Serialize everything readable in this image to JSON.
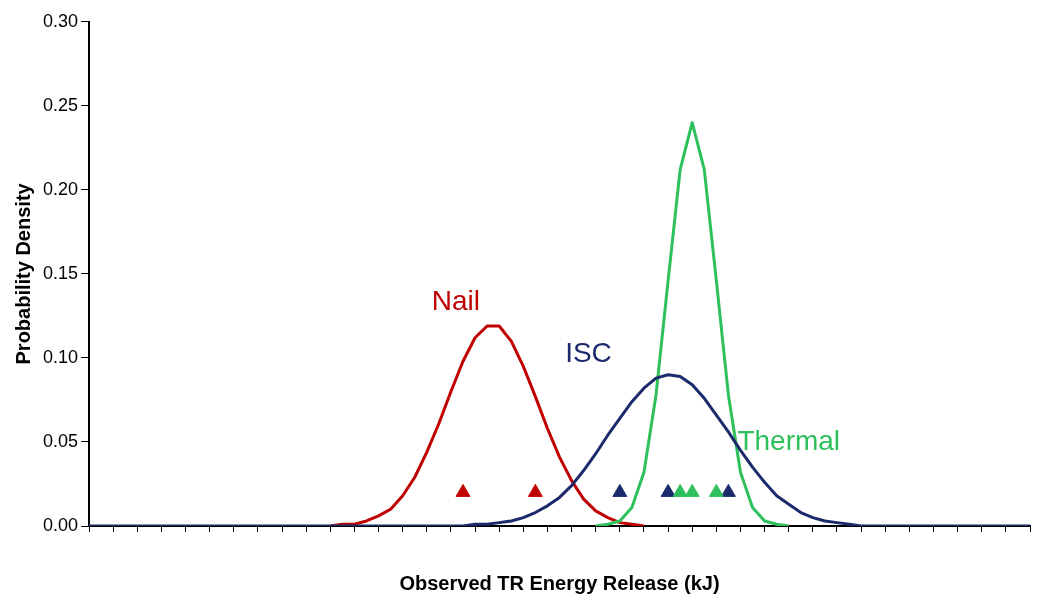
{
  "chart_data": {
    "type": "line",
    "xlabel": "Observed TR Energy Release (kJ)",
    "ylabel": "Probability Density",
    "categories": [
      null,
      null,
      null,
      null,
      null,
      null,
      null,
      null,
      null,
      null,
      null,
      null,
      null,
      null,
      null,
      null,
      null,
      null,
      null,
      null,
      null,
      null,
      null,
      null,
      null,
      null,
      null,
      null,
      null,
      null,
      null,
      null,
      null,
      null,
      null,
      null,
      null,
      null,
      null,
      null,
      null,
      null,
      null,
      null,
      null,
      null,
      null,
      null,
      null,
      null,
      null,
      null,
      null,
      null,
      null,
      null,
      null,
      null,
      null,
      null,
      null,
      null,
      null,
      null,
      null,
      null,
      null,
      null,
      null,
      null,
      null,
      null,
      null,
      null,
      null,
      null,
      null,
      null,
      null
    ],
    "ylim": [
      0,
      0.3
    ],
    "yticks": [
      {
        "value": 0,
        "label": "0.00"
      },
      {
        "value": 0.05,
        "label": "0.05"
      },
      {
        "value": 0.1,
        "label": "0.10"
      },
      {
        "value": 0.15,
        "label": "0.15"
      },
      {
        "value": 0.2,
        "label": "0.20"
      },
      {
        "value": 0.25,
        "label": "0.25"
      },
      {
        "value": 0.3,
        "label": "0.30"
      }
    ],
    "tick_labels": "y",
    "series": [
      {
        "name": "Nail",
        "color": "#c00000",
        "values": [
          null,
          null,
          null,
          null,
          null,
          null,
          null,
          null,
          null,
          null,
          null,
          null,
          null,
          null,
          null,
          null,
          null,
          null,
          null,
          null,
          0,
          0.001,
          0.001,
          0.003,
          0.006,
          0.01,
          0.018,
          0.029,
          0.044,
          0.061,
          0.08,
          0.098,
          0.112,
          0.119,
          0.119,
          0.11,
          0.095,
          0.077,
          0.058,
          0.041,
          0.027,
          0.016,
          0.009,
          0.005,
          0.002,
          0.001,
          0,
          null,
          null,
          null,
          null,
          null,
          null,
          null,
          null,
          null,
          null,
          null,
          null,
          null,
          null,
          null,
          null,
          null,
          null,
          null,
          null,
          null,
          null,
          null,
          null,
          null,
          null,
          null,
          null,
          null,
          null,
          null,
          null
        ]
      },
      {
        "name": "Thermal",
        "color": "#2ec05a",
        "values": [
          null,
          null,
          null,
          null,
          null,
          null,
          null,
          null,
          null,
          null,
          null,
          null,
          null,
          null,
          null,
          null,
          null,
          null,
          null,
          null,
          null,
          null,
          null,
          null,
          null,
          null,
          null,
          null,
          null,
          null,
          null,
          null,
          null,
          null,
          null,
          null,
          null,
          null,
          null,
          null,
          null,
          null,
          0,
          0.001,
          0.003,
          0.011,
          0.032,
          0.078,
          0.146,
          0.212,
          0.24,
          0.212,
          0.146,
          0.078,
          0.032,
          0.011,
          0.003,
          0.001,
          0,
          null,
          null,
          null,
          null,
          null,
          null,
          null,
          null,
          null,
          null,
          null,
          null,
          null,
          null,
          null,
          null,
          null,
          null,
          null,
          null
        ]
      },
      {
        "name": "ISC",
        "color": "#1b2a6b",
        "values": [
          0,
          0,
          0,
          0,
          0,
          0,
          0,
          0,
          0,
          0,
          0,
          0,
          0,
          0,
          0,
          0,
          0,
          0,
          0,
          0,
          0,
          0,
          0,
          0,
          0,
          0,
          0,
          0,
          0,
          0,
          0,
          0,
          0.001,
          0.001,
          0.002,
          0.003,
          0.005,
          0.008,
          0.012,
          0.017,
          0.024,
          0.033,
          0.043,
          0.054,
          0.064,
          0.074,
          0.082,
          0.088,
          0.09,
          0.089,
          0.084,
          0.076,
          0.066,
          0.056,
          0.045,
          0.035,
          0.026,
          0.018,
          0.013,
          0.008,
          0.005,
          0.003,
          0.002,
          0.001,
          0,
          0,
          0,
          0,
          0,
          0,
          0,
          0,
          0,
          0,
          0,
          0,
          0,
          0,
          0
        ]
      },
      {
        "type": "scatter",
        "marker": "triangle",
        "color": "#c00000",
        "values": [
          null,
          null,
          null,
          null,
          null,
          null,
          null,
          null,
          null,
          null,
          null,
          null,
          null,
          null,
          null,
          null,
          null,
          null,
          null,
          null,
          null,
          null,
          null,
          null,
          null,
          null,
          null,
          null,
          null,
          null,
          null,
          0.02,
          null,
          null,
          null,
          null,
          null,
          0.02,
          null,
          null,
          null,
          null,
          null,
          null,
          null,
          null,
          null,
          null,
          null,
          null,
          null,
          null,
          null,
          null,
          null,
          null,
          null,
          null,
          null,
          null,
          null,
          null,
          null,
          null,
          null,
          null,
          null,
          null,
          null,
          null,
          null,
          null,
          null,
          null,
          null,
          null,
          null,
          null,
          null
        ]
      },
      {
        "type": "scatter",
        "marker": "triangle",
        "color": "#1b2a6b",
        "values": [
          null,
          null,
          null,
          null,
          null,
          null,
          null,
          null,
          null,
          null,
          null,
          null,
          null,
          null,
          null,
          null,
          null,
          null,
          null,
          null,
          null,
          null,
          null,
          null,
          null,
          null,
          null,
          null,
          null,
          null,
          null,
          null,
          null,
          null,
          null,
          null,
          null,
          null,
          null,
          null,
          null,
          null,
          null,
          null,
          0.02,
          null,
          null,
          null,
          0.02,
          null,
          null,
          null,
          null,
          0.02,
          null,
          null,
          null,
          null,
          null,
          null,
          null,
          null,
          null,
          null,
          null,
          null,
          null,
          null,
          null,
          null,
          null,
          null,
          null,
          null,
          null,
          null,
          null,
          null,
          null
        ]
      },
      {
        "type": "scatter",
        "marker": "triangle",
        "color": "#2ec05a",
        "values": [
          null,
          null,
          null,
          null,
          null,
          null,
          null,
          null,
          null,
          null,
          null,
          null,
          null,
          null,
          null,
          null,
          null,
          null,
          null,
          null,
          null,
          null,
          null,
          null,
          null,
          null,
          null,
          null,
          null,
          null,
          null,
          null,
          null,
          null,
          null,
          null,
          null,
          null,
          null,
          null,
          null,
          null,
          null,
          null,
          null,
          null,
          null,
          null,
          null,
          0.02,
          0.02,
          null,
          0.02,
          null,
          null,
          null,
          null,
          null,
          null,
          null,
          null,
          null,
          null,
          null,
          null,
          null,
          null,
          null,
          null,
          null,
          null,
          null,
          null,
          null,
          null,
          null,
          null,
          null,
          null
        ]
      }
    ]
  }
}
